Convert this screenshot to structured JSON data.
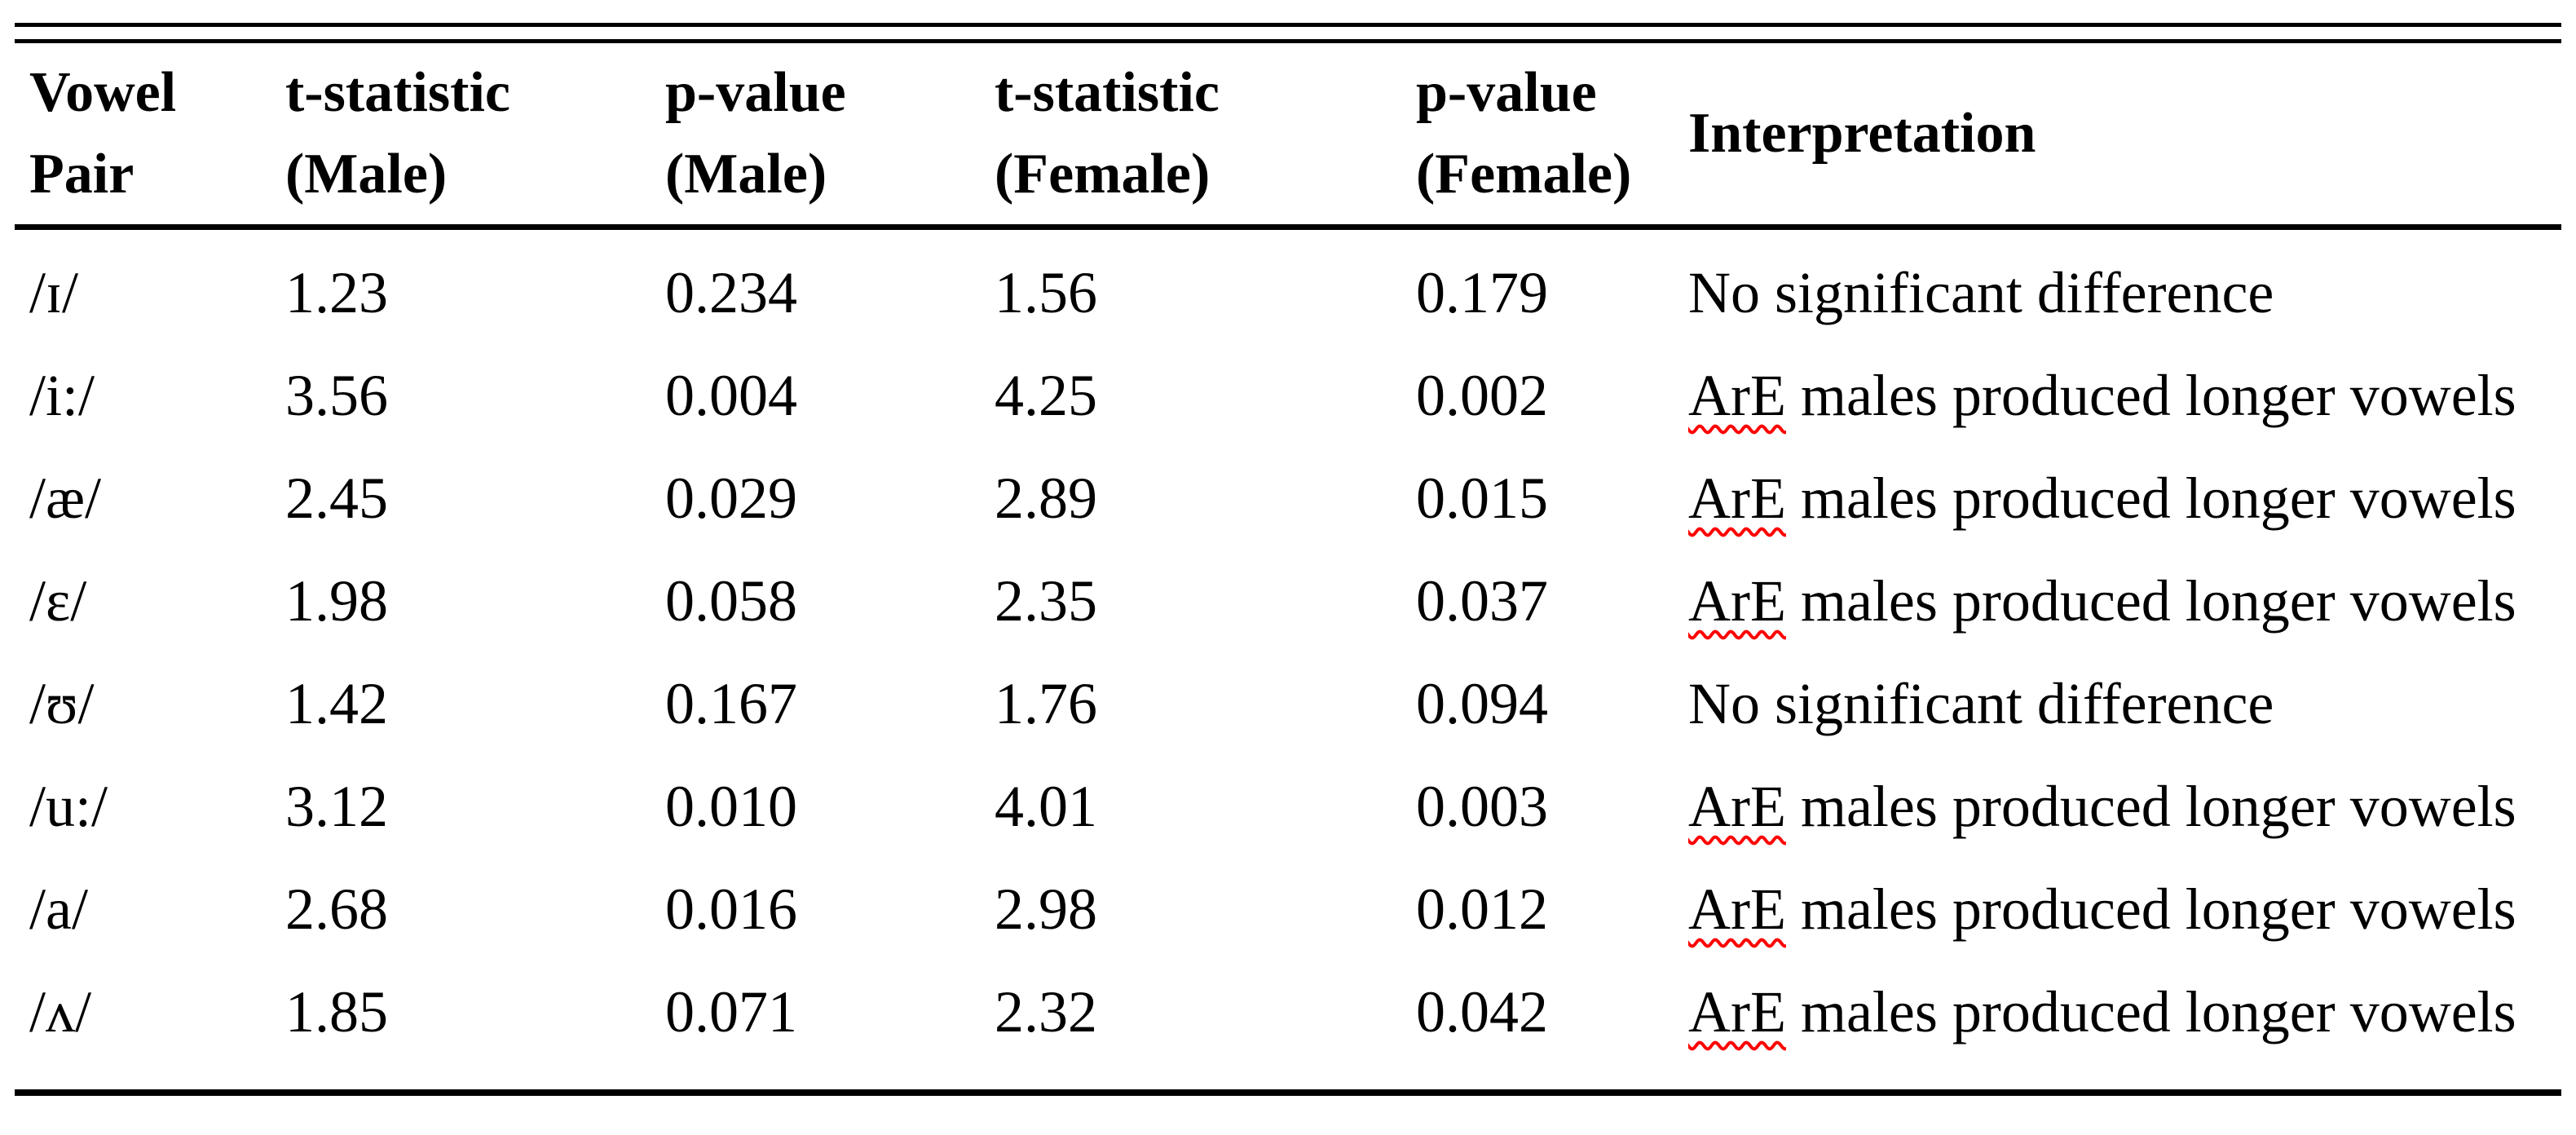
{
  "table": {
    "headers": [
      {
        "line1": "Vowel",
        "line2": "Pair"
      },
      {
        "line1": "t-statistic",
        "line2": "(Male)"
      },
      {
        "line1": "p-value",
        "line2": "(Male)"
      },
      {
        "line1": "t-statistic",
        "line2": "(Female)"
      },
      {
        "line1": "p-value",
        "line2": "(Female)"
      },
      {
        "line1": "Interpretation",
        "line2": ""
      }
    ],
    "rows": [
      {
        "vowel": "/ɪ/",
        "t_male": "1.23",
        "p_male": "0.234",
        "t_female": "1.56",
        "p_female": "0.179",
        "flagged_word": "",
        "interp_text": "No significant difference"
      },
      {
        "vowel": "/i:/",
        "t_male": "3.56",
        "p_male": "0.004",
        "t_female": "4.25",
        "p_female": "0.002",
        "flagged_word": "ArE",
        "interp_text": " males produced longer vowels"
      },
      {
        "vowel": "/æ/",
        "t_male": "2.45",
        "p_male": "0.029",
        "t_female": "2.89",
        "p_female": "0.015",
        "flagged_word": "ArE",
        "interp_text": " males produced longer vowels"
      },
      {
        "vowel": "/ɛ/",
        "t_male": "1.98",
        "p_male": "0.058",
        "t_female": "2.35",
        "p_female": "0.037",
        "flagged_word": "ArE",
        "interp_text": " males produced longer vowels"
      },
      {
        "vowel": "/ʊ/",
        "t_male": "1.42",
        "p_male": "0.167",
        "t_female": "1.76",
        "p_female": "0.094",
        "flagged_word": "",
        "interp_text": "No significant difference"
      },
      {
        "vowel": "/u:/",
        "t_male": "3.12",
        "p_male": "0.010",
        "t_female": "4.01",
        "p_female": "0.003",
        "flagged_word": "ArE",
        "interp_text": " males produced longer vowels"
      },
      {
        "vowel": "/a/",
        "t_male": "2.68",
        "p_male": "0.016",
        "t_female": "2.98",
        "p_female": "0.012",
        "flagged_word": "ArE",
        "interp_text": " males produced longer vowels"
      },
      {
        "vowel": "/ʌ/",
        "t_male": "1.85",
        "p_male": "0.071",
        "t_female": "2.32",
        "p_female": "0.042",
        "flagged_word": "ArE",
        "interp_text": " males produced longer vowels"
      }
    ],
    "colors": {
      "text": "#000000",
      "background": "#ffffff",
      "rule": "#000000",
      "spellcheck_underline": "#ff0000"
    }
  }
}
